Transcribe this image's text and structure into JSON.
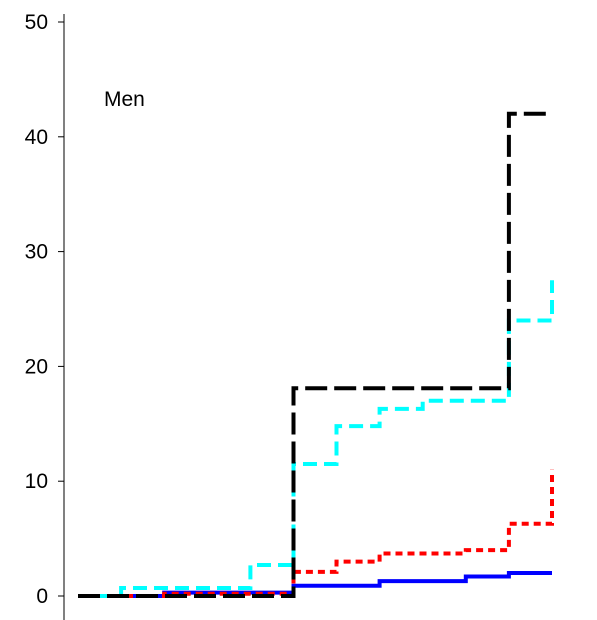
{
  "chart_data": {
    "type": "line",
    "annotation": "Men",
    "title": "",
    "xlabel": "",
    "ylabel": "",
    "ylim": [
      0,
      50
    ],
    "yticks": [
      0,
      10,
      20,
      30,
      40,
      50
    ],
    "xlim": [
      0,
      11
    ],
    "grid": false,
    "legend": "none",
    "series": [
      {
        "color": "#0000ff",
        "style": "solid",
        "points": [
          [
            0.0,
            0
          ],
          [
            2.0,
            0
          ],
          [
            2.0,
            0.3
          ],
          [
            5.0,
            0.3
          ],
          [
            5.0,
            0.9
          ],
          [
            7.0,
            0.9
          ],
          [
            7.0,
            1.3
          ],
          [
            9.0,
            1.3
          ],
          [
            9.0,
            1.7
          ],
          [
            10.0,
            1.7
          ],
          [
            10.0,
            2.0
          ],
          [
            11.0,
            2.0
          ]
        ]
      },
      {
        "color": "#ff0000",
        "style": "dotted",
        "points": [
          [
            0.0,
            0
          ],
          [
            2.0,
            0
          ],
          [
            2.0,
            0.2
          ],
          [
            5.0,
            0.2
          ],
          [
            5.0,
            2.1
          ],
          [
            6.0,
            2.1
          ],
          [
            6.0,
            3.0
          ],
          [
            7.0,
            3.0
          ],
          [
            7.0,
            3.7
          ],
          [
            9.0,
            3.7
          ],
          [
            9.0,
            4.0
          ],
          [
            10.0,
            4.0
          ],
          [
            10.0,
            6.3
          ],
          [
            11.0,
            6.3
          ],
          [
            11.0,
            11.0
          ]
        ]
      },
      {
        "color": "#00ffff",
        "style": "dashed",
        "points": [
          [
            0.0,
            0
          ],
          [
            1.0,
            0
          ],
          [
            1.0,
            0.7
          ],
          [
            4.0,
            0.7
          ],
          [
            4.0,
            2.7
          ],
          [
            5.0,
            2.7
          ],
          [
            5.0,
            11.5
          ],
          [
            6.0,
            11.5
          ],
          [
            6.0,
            14.8
          ],
          [
            7.0,
            14.8
          ],
          [
            7.0,
            16.3
          ],
          [
            8.0,
            16.3
          ],
          [
            8.0,
            17.0
          ],
          [
            10.0,
            17.0
          ],
          [
            10.0,
            24.0
          ],
          [
            11.0,
            24.0
          ],
          [
            11.0,
            27.5
          ]
        ]
      },
      {
        "color": "#000000",
        "style": "longdash",
        "points": [
          [
            0.0,
            0
          ],
          [
            5.0,
            0
          ],
          [
            5.0,
            18.1
          ],
          [
            10.0,
            18.1
          ],
          [
            10.0,
            42.0
          ],
          [
            11.0,
            42.0
          ]
        ]
      }
    ]
  }
}
